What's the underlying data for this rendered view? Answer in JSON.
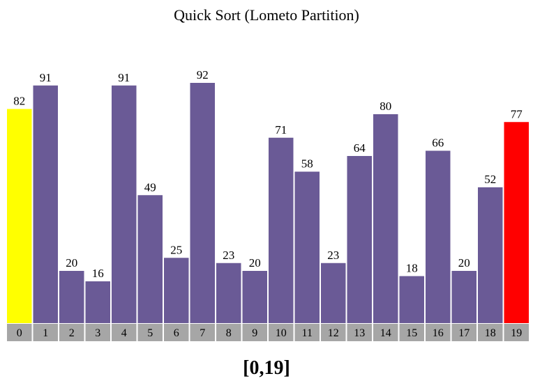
{
  "title": "Quick Sort (Lometo Partition)",
  "range_label": "[0,19]",
  "colors": {
    "default_bar": "#6a5a96",
    "pivot_bar": "#ff0000",
    "current_bar": "#ffff00",
    "index_bg": "#a6a6a6",
    "text": "#000000"
  },
  "chart_data": {
    "type": "bar",
    "title": "Quick Sort (Lometo Partition)",
    "categories": [
      "0",
      "1",
      "2",
      "3",
      "4",
      "5",
      "6",
      "7",
      "8",
      "9",
      "10",
      "11",
      "12",
      "13",
      "14",
      "15",
      "16",
      "17",
      "18",
      "19"
    ],
    "values": [
      82,
      91,
      20,
      16,
      91,
      49,
      25,
      92,
      23,
      20,
      71,
      58,
      23,
      64,
      80,
      18,
      66,
      20,
      52,
      77
    ],
    "highlights": [
      {
        "index": 0,
        "state": "current",
        "color": "#ffff00"
      },
      {
        "index": 19,
        "state": "pivot",
        "color": "#ff0000"
      }
    ],
    "ylim": [
      0,
      92
    ],
    "grid": false,
    "legend": "none"
  }
}
